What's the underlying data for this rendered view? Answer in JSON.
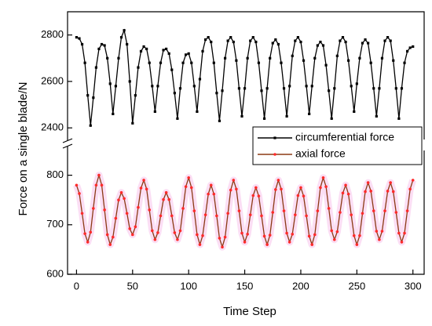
{
  "chart_data": {
    "type": "line",
    "x_label": "Time Step",
    "y_label": "Force on a single blade/N",
    "x": [
      0,
      2.5,
      5,
      7.5,
      10,
      12.5,
      15,
      17.5,
      20,
      22.5,
      25,
      27.5,
      30,
      32.5,
      35,
      37.5,
      40,
      42.5,
      45,
      47.5,
      50,
      52.5,
      55,
      57.5,
      60,
      62.5,
      65,
      67.5,
      70,
      72.5,
      75,
      77.5,
      80,
      82.5,
      85,
      87.5,
      90,
      92.5,
      95,
      97.5,
      100,
      102.5,
      105,
      107.5,
      110,
      112.5,
      115,
      117.5,
      120,
      122.5,
      125,
      127.5,
      130,
      132.5,
      135,
      137.5,
      140,
      142.5,
      145,
      147.5,
      150,
      152.5,
      155,
      157.5,
      160,
      162.5,
      165,
      167.5,
      170,
      172.5,
      175,
      177.5,
      180,
      182.5,
      185,
      187.5,
      190,
      192.5,
      195,
      197.5,
      200,
      202.5,
      205,
      207.5,
      210,
      212.5,
      215,
      217.5,
      220,
      222.5,
      225,
      227.5,
      230,
      232.5,
      235,
      237.5,
      240,
      242.5,
      245,
      247.5,
      250,
      252.5,
      255,
      257.5,
      260,
      262.5,
      265,
      267.5,
      270,
      272.5,
      275,
      277.5,
      280,
      282.5,
      285,
      287.5,
      290,
      292.5,
      295,
      297.5,
      300
    ],
    "xlim": [
      -8,
      310
    ],
    "xticks": [
      0,
      50,
      100,
      150,
      200,
      250,
      300
    ],
    "ylim_upper": [
      2350,
      2900
    ],
    "yticks_upper": [
      2400,
      2600,
      2800
    ],
    "ylim_lower": [
      600,
      850
    ],
    "yticks_lower": [
      600,
      700,
      800
    ],
    "legend": "right",
    "series": [
      {
        "name": "circumferential force",
        "color": "#000000",
        "marker_color": "#000000",
        "marker": "square",
        "panel": "upper",
        "values": [
          2790,
          2785,
          2760,
          2680,
          2540,
          2410,
          2530,
          2660,
          2740,
          2760,
          2755,
          2700,
          2590,
          2460,
          2580,
          2700,
          2790,
          2820,
          2760,
          2600,
          2420,
          2540,
          2660,
          2730,
          2750,
          2740,
          2680,
          2580,
          2470,
          2580,
          2680,
          2735,
          2740,
          2720,
          2650,
          2550,
          2440,
          2570,
          2680,
          2715,
          2720,
          2680,
          2580,
          2470,
          2610,
          2730,
          2780,
          2790,
          2770,
          2680,
          2550,
          2430,
          2560,
          2700,
          2775,
          2790,
          2770,
          2690,
          2570,
          2450,
          2570,
          2700,
          2775,
          2790,
          2770,
          2680,
          2560,
          2440,
          2570,
          2700,
          2765,
          2780,
          2760,
          2680,
          2570,
          2450,
          2580,
          2710,
          2775,
          2790,
          2770,
          2690,
          2580,
          2460,
          2580,
          2700,
          2755,
          2770,
          2755,
          2670,
          2560,
          2440,
          2570,
          2710,
          2775,
          2790,
          2770,
          2690,
          2580,
          2470,
          2590,
          2700,
          2765,
          2780,
          2765,
          2680,
          2570,
          2450,
          2570,
          2700,
          2775,
          2790,
          2775,
          2690,
          2570,
          2440,
          2570,
          2680,
          2730,
          2745,
          2750
        ]
      },
      {
        "name": "axial force",
        "color": "#8b3a14",
        "marker_color": "#ff2a2a",
        "marker": "circle",
        "panel": "lower",
        "values": [
          780,
          763,
          723,
          682,
          665,
          685,
          733,
          780,
          800,
          780,
          730,
          680,
          660,
          675,
          713,
          750,
          765,
          753,
          723,
          692,
          680,
          696,
          735,
          774,
          790,
          772,
          730,
          688,
          670,
          684,
          718,
          751,
          765,
          751,
          718,
          684,
          670,
          688,
          733,
          777,
          795,
          775,
          728,
          680,
          660,
          678,
          720,
          762,
          780,
          762,
          718,
          673,
          655,
          675,
          723,
          770,
          790,
          772,
          728,
          683,
          665,
          681,
          720,
          759,
          775,
          758,
          718,
          677,
          660,
          679,
          725,
          771,
          790,
          772,
          728,
          683,
          665,
          681,
          720,
          759,
          775,
          758,
          718,
          677,
          660,
          680,
          728,
          775,
          795,
          777,
          733,
          688,
          670,
          686,
          725,
          764,
          780,
          762,
          720,
          678,
          660,
          678,
          723,
          767,
          785,
          768,
          728,
          687,
          670,
          687,
          728,
          768,
          785,
          767,
          725,
          683,
          665,
          683,
          728,
          772,
          790
        ]
      }
    ]
  }
}
